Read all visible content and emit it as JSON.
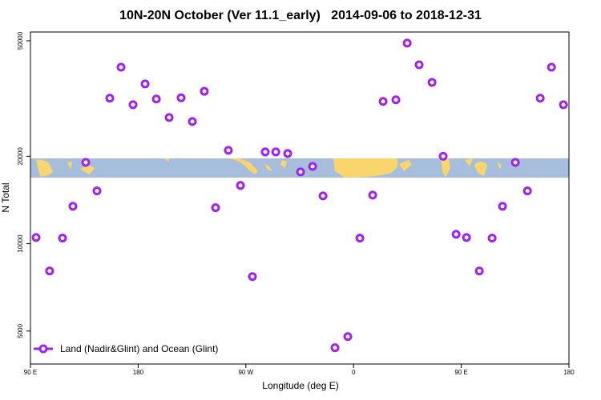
{
  "chart_data": {
    "type": "scatter",
    "title": "10N-20N October (Ver 11.1_early)   2014-09-06 to 2018-12-31",
    "x_label": "Longitude (deg E)",
    "y_label": "N Total",
    "ylog": true,
    "legend_position": "bottom-left",
    "xlim": [
      90,
      540
    ],
    "xticks": [
      {
        "value": 90,
        "label": "90 E"
      },
      {
        "value": 180,
        "label": "180"
      },
      {
        "value": 270,
        "label": "90 W"
      },
      {
        "value": 360,
        "label": "0"
      },
      {
        "value": 450,
        "label": "90 E"
      },
      {
        "value": 540,
        "label": "180"
      }
    ],
    "ylim": [
      3850,
      53600
    ],
    "yticks": [
      5000,
      10000,
      20000,
      50000
    ],
    "x": [
      94.7,
      106,
      116.8,
      125.5,
      136.2,
      145.6,
      156.3,
      165.7,
      175.7,
      185.8,
      195.2,
      205.9,
      215.9,
      225.3,
      235.3,
      244.7,
      255.4,
      265.5,
      275.5,
      286.2,
      295,
      305,
      315.7,
      325.8,
      334.5,
      344.5,
      355.2,
      365.3,
      376,
      384.7,
      395.4,
      404.8,
      414.8,
      425.6,
      434.9,
      445.7,
      454.4,
      465.1,
      475.8,
      484.5,
      495.2,
      505.3,
      516,
      525.4,
      535.4
    ],
    "series": [
      {
        "name": "Land (Nadir&Glint) and Ocean (Glint)",
        "color": "#a020f0",
        "values": [
          10500,
          8050,
          10450,
          13450,
          19050,
          15200,
          31700,
          40550,
          30100,
          35500,
          31500,
          27200,
          31800,
          26350,
          33500,
          13300,
          20970,
          15870,
          7700,
          20700,
          20700,
          20450,
          17670,
          18460,
          14610,
          4380,
          4785,
          10450,
          14700,
          30900,
          31300,
          49070,
          41320,
          35950,
          20000,
          10770,
          10500,
          8050,
          10450,
          13450,
          19050,
          15200,
          31700,
          40550,
          30100
        ]
      }
    ]
  }
}
